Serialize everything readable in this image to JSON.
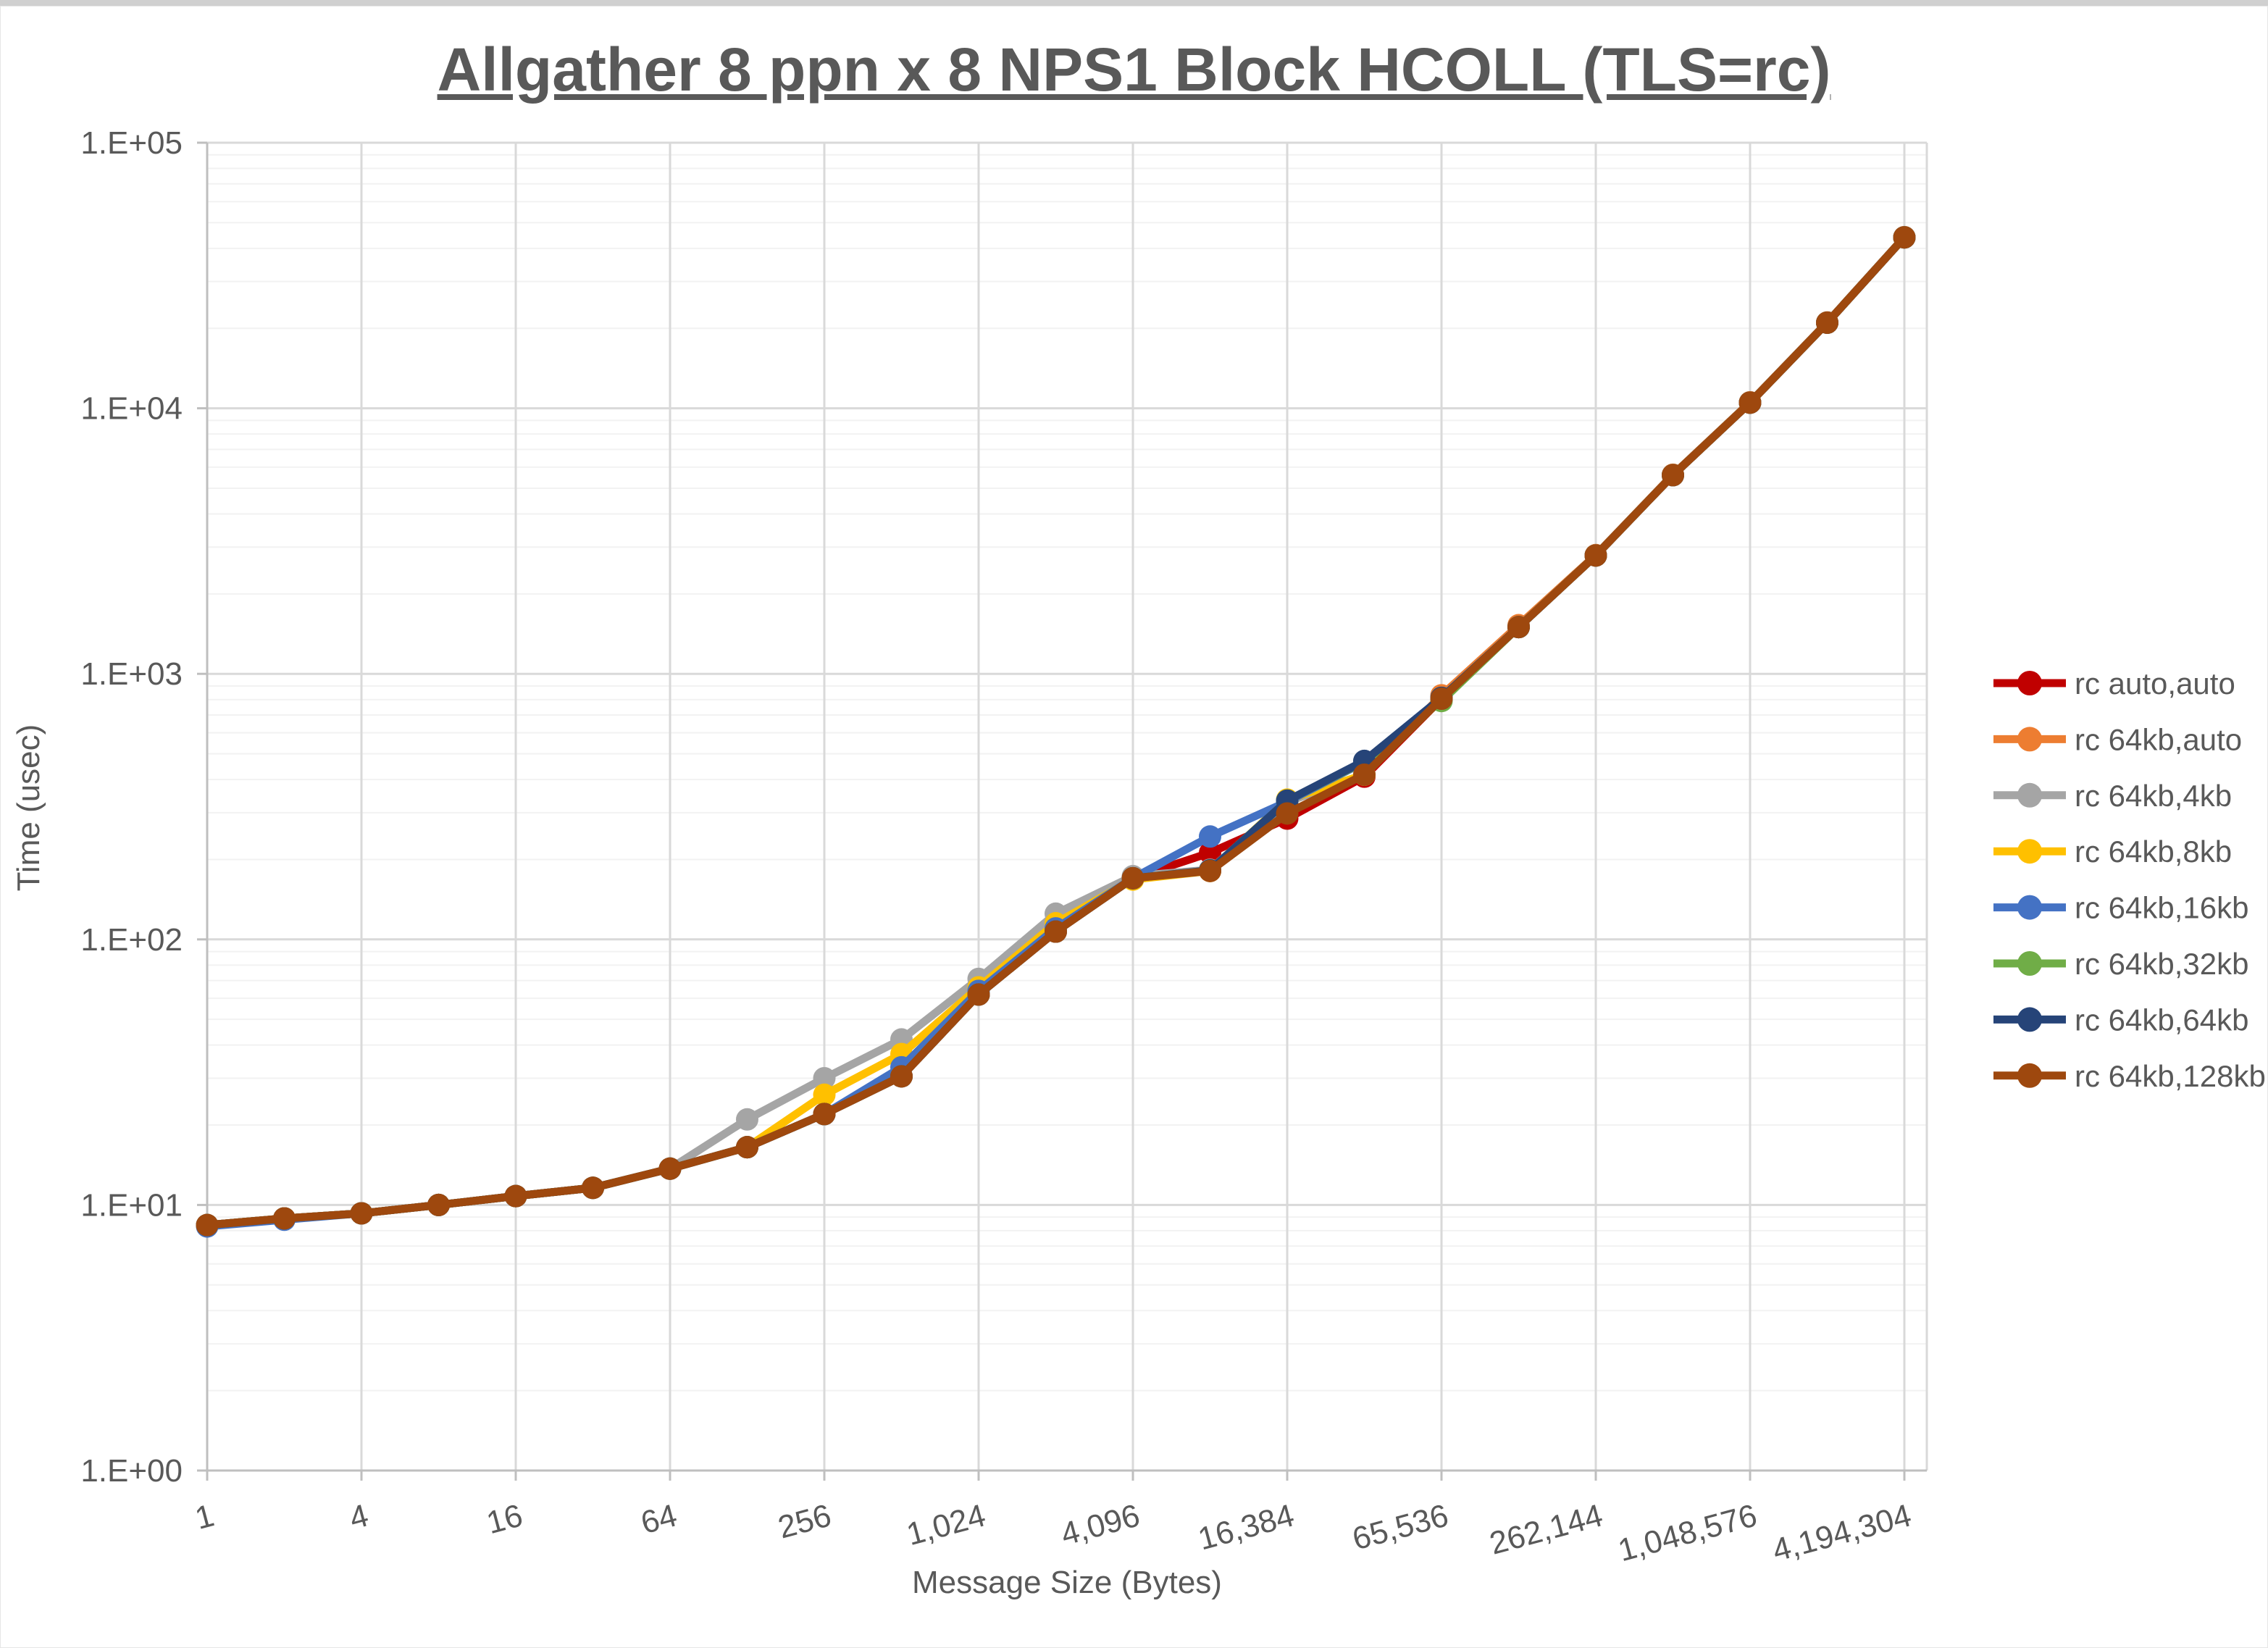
{
  "chart_data": {
    "type": "line",
    "title": "Allgather 8 ppn x 8 NPS1 Block HCOLL (TLS=rc)",
    "xlabel": "Message Size (Bytes)",
    "ylabel": "Time (usec)",
    "x_scale": "log2",
    "y_scale": "log10",
    "ylim": [
      1,
      100000
    ],
    "grid": "on",
    "legend_position": "right",
    "colors": {
      "text": "#595959",
      "axis": "#bfbfbf",
      "grid_major": "#d9d9d9",
      "grid_minor": "#f2f2f2"
    },
    "y_ticks": [
      {
        "label": "1.E+00",
        "value": 1
      },
      {
        "label": "1.E+01",
        "value": 10
      },
      {
        "label": "1.E+02",
        "value": 100
      },
      {
        "label": "1.E+03",
        "value": 1000
      },
      {
        "label": "1.E+04",
        "value": 10000
      },
      {
        "label": "1.E+05",
        "value": 100000
      }
    ],
    "x_ticks": [
      {
        "label": "1",
        "value": 1
      },
      {
        "label": "4",
        "value": 4
      },
      {
        "label": "16",
        "value": 16
      },
      {
        "label": "64",
        "value": 64
      },
      {
        "label": "256",
        "value": 256
      },
      {
        "label": "1,024",
        "value": 1024
      },
      {
        "label": "4,096",
        "value": 4096
      },
      {
        "label": "16,384",
        "value": 16384
      },
      {
        "label": "65,536",
        "value": 65536
      },
      {
        "label": "262,144",
        "value": 262144
      },
      {
        "label": "1,048,576",
        "value": 1048576
      },
      {
        "label": "4,194,304",
        "value": 4194304
      }
    ],
    "x": [
      1,
      2,
      4,
      8,
      16,
      32,
      64,
      128,
      256,
      512,
      1024,
      2048,
      4096,
      8192,
      16384,
      32768,
      65536,
      131072,
      262144,
      524288,
      1048576,
      2097152,
      4194304
    ],
    "series": [
      {
        "name": "rc auto,auto",
        "color": "#C00000",
        "values": [
          8.4,
          8.9,
          9.3,
          10,
          10.8,
          11.6,
          13.7,
          16.5,
          22,
          30.5,
          62,
          107,
          170,
          212,
          285,
          410,
          806,
          1500,
          2790,
          5600,
          10500,
          21000,
          44000
        ]
      },
      {
        "name": "rc 64kb,auto",
        "color": "#ED7D31",
        "values": [
          8.4,
          8.9,
          9.3,
          10,
          10.8,
          11.6,
          13.7,
          16.5,
          22,
          30.5,
          62,
          107,
          170,
          181,
          330,
          417,
          830,
          1525,
          2800,
          5620,
          10530,
          21050,
          44100
        ]
      },
      {
        "name": "rc 64kb,4kb",
        "color": "#A5A5A5",
        "values": [
          8.4,
          8.9,
          9.3,
          10,
          10.8,
          11.6,
          13.7,
          21,
          30,
          42,
          71,
          125,
          173,
          183,
          330,
          417,
          810,
          1500,
          2790,
          5600,
          10500,
          21000,
          44000
        ]
      },
      {
        "name": "rc 64kb,8kb",
        "color": "#FFC000",
        "values": [
          8.4,
          8.9,
          9.3,
          10,
          10.8,
          11.6,
          13.7,
          16.5,
          26,
          37,
          66,
          115,
          168,
          181,
          336,
          417,
          812,
          1500,
          2790,
          5600,
          10500,
          21000,
          44000
        ]
      },
      {
        "name": "rc 64kb,16kb",
        "color": "#4472C4",
        "values": [
          8.3,
          8.8,
          9.3,
          10,
          10.8,
          11.6,
          13.7,
          16.5,
          22,
          33,
          64,
          110,
          170,
          244,
          330,
          466,
          812,
          1500,
          2790,
          5600,
          10500,
          21000,
          44000
        ]
      },
      {
        "name": "rc 64kb,32kb",
        "color": "#70AD47",
        "values": [
          8.4,
          8.9,
          9.3,
          10,
          10.8,
          11.6,
          13.7,
          16.5,
          22,
          30.5,
          62,
          107,
          170,
          182,
          333,
          468,
          790,
          1500,
          2790,
          5600,
          10500,
          21000,
          44000
        ]
      },
      {
        "name": "rc 64kb,64kb",
        "color": "#264478",
        "values": [
          8.4,
          8.9,
          9.3,
          10,
          10.8,
          11.6,
          13.7,
          16.5,
          22,
          30.5,
          62,
          107,
          170,
          182,
          333,
          470,
          812,
          1500,
          2790,
          5600,
          10500,
          21000,
          44000
        ]
      },
      {
        "name": "rc 64kb,128kb",
        "color": "#9E480E",
        "values": [
          8.4,
          8.9,
          9.3,
          10,
          10.8,
          11.6,
          13.7,
          16.5,
          22,
          30.5,
          62,
          107,
          170,
          181,
          298,
          417,
          806,
          1500,
          2790,
          5600,
          10500,
          21000,
          44000
        ]
      }
    ]
  }
}
